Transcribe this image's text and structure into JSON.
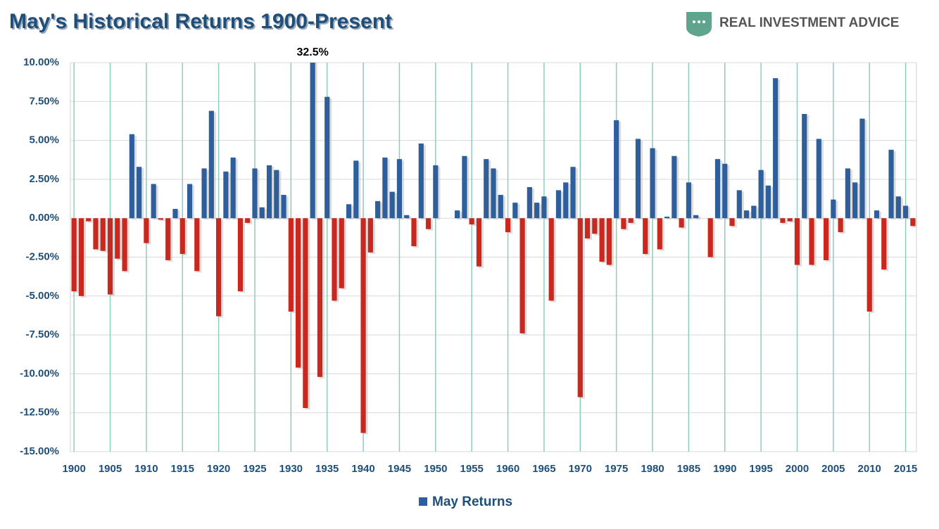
{
  "chart_data": {
    "type": "bar",
    "title": "May's Historical Returns 1900-Present",
    "logo": "REAL INVESTMENT ADVICE",
    "categories": [
      "1900",
      null,
      null,
      null,
      null,
      "1905",
      null,
      null,
      null,
      null,
      "1910",
      null,
      null,
      null,
      null,
      "1915",
      null,
      null,
      null,
      null,
      "1920",
      null,
      null,
      null,
      null,
      "1925",
      null,
      null,
      null,
      null,
      "1930",
      null,
      null,
      null,
      null,
      "1935",
      null,
      null,
      null,
      null,
      "1940",
      null,
      null,
      null,
      null,
      "1945",
      null,
      null,
      null,
      null,
      "1950",
      null,
      null,
      null,
      null,
      "1955",
      null,
      null,
      null,
      null,
      "1960",
      null,
      null,
      null,
      null,
      "1965",
      null,
      null,
      null,
      null,
      "1970",
      null,
      null,
      null,
      null,
      "1975",
      null,
      null,
      null,
      null,
      "1980",
      null,
      null,
      null,
      null,
      "1985",
      null,
      null,
      null,
      null,
      "1990",
      null,
      null,
      null,
      null,
      "1995",
      null,
      null,
      null,
      null,
      "2000",
      null,
      null,
      null,
      null,
      "2005",
      null,
      null,
      null,
      null,
      "2010",
      null,
      null,
      null,
      null,
      "2015",
      null
    ],
    "series": [
      {
        "name": "May Returns",
        "color": "#2e5f9a",
        "negative_color": "#c8281e",
        "values": [
          -4.7,
          -5.0,
          -0.2,
          -2.0,
          -2.1,
          -4.9,
          -2.6,
          -3.4,
          5.4,
          3.3,
          -1.6,
          2.2,
          -0.1,
          -2.7,
          0.6,
          -2.3,
          2.2,
          -3.4,
          3.2,
          6.9,
          -6.3,
          3.0,
          3.9,
          -4.7,
          -0.3,
          3.2,
          0.7,
          3.4,
          3.1,
          1.5,
          -6.0,
          -9.6,
          -12.2,
          32.5,
          -10.2,
          7.8,
          -5.3,
          -4.5,
          0.9,
          3.7,
          -13.8,
          -2.2,
          1.1,
          3.9,
          1.7,
          3.8,
          0.2,
          -1.8,
          4.8,
          -0.7,
          3.4,
          0,
          0,
          0.5,
          4.0,
          -0.4,
          -3.1,
          3.8,
          3.2,
          1.5,
          -0.9,
          1.0,
          -7.4,
          2.0,
          1.0,
          1.4,
          -5.3,
          1.8,
          2.3,
          3.3,
          -11.5,
          -1.3,
          -1.0,
          -2.8,
          -3.0,
          6.3,
          -0.7,
          -0.3,
          5.1,
          -2.3,
          4.5,
          -2.0,
          0.1,
          4.0,
          -0.6,
          2.3,
          0.2,
          0,
          -2.5,
          3.8,
          3.5,
          -0.5,
          1.8,
          0.5,
          0.8,
          3.1,
          2.1,
          9.0,
          -0.3,
          -0.2,
          -3.0,
          6.7,
          -3.0,
          5.1,
          -2.7,
          1.2,
          -0.9,
          3.2,
          2.3,
          6.4,
          -6.0,
          0.5,
          -3.3,
          4.4,
          1.4,
          0.8,
          -0.5
        ],
        "value_labels": [
          null,
          null,
          null,
          null,
          null,
          null,
          null,
          null,
          null,
          null,
          null,
          null,
          null,
          null,
          null,
          null,
          null,
          null,
          null,
          null,
          null,
          null,
          null,
          null,
          null,
          null,
          null,
          null,
          null,
          null,
          null,
          null,
          null,
          "32.5%",
          null,
          null,
          null,
          null,
          null,
          null,
          null,
          null,
          null,
          null,
          null,
          null,
          null,
          null,
          null,
          null,
          null,
          null,
          null,
          null,
          null,
          null,
          null,
          null,
          null,
          null,
          null,
          null,
          null,
          null,
          null,
          null,
          null,
          null,
          null,
          null,
          null,
          null,
          null,
          null,
          null,
          null,
          null,
          null,
          null,
          null,
          null,
          null,
          null,
          null,
          null,
          null,
          null,
          null,
          null,
          null,
          null,
          null,
          null,
          null,
          null,
          null,
          null,
          null,
          null,
          null,
          null,
          null,
          null,
          null,
          null,
          null,
          null,
          null,
          null,
          null,
          null,
          null,
          null,
          null,
          null,
          null,
          null
        ]
      }
    ],
    "ylim": [
      -15,
      10
    ],
    "yticks": [
      {
        "value": -15,
        "label": "-15.00%"
      },
      {
        "value": -12.5,
        "label": "-12.50%"
      },
      {
        "value": -10,
        "label": "-10.00%"
      },
      {
        "value": -7.5,
        "label": "-7.50%"
      },
      {
        "value": -5,
        "label": "-5.00%"
      },
      {
        "value": -2.5,
        "label": "-2.50%"
      },
      {
        "value": 0,
        "label": "0.00%"
      },
      {
        "value": 2.5,
        "label": "2.50%"
      },
      {
        "value": 5,
        "label": "5.00%"
      },
      {
        "value": 7.5,
        "label": "7.50%"
      },
      {
        "value": 10,
        "label": "10.00%"
      }
    ],
    "grid": true,
    "legend": "bottom"
  }
}
